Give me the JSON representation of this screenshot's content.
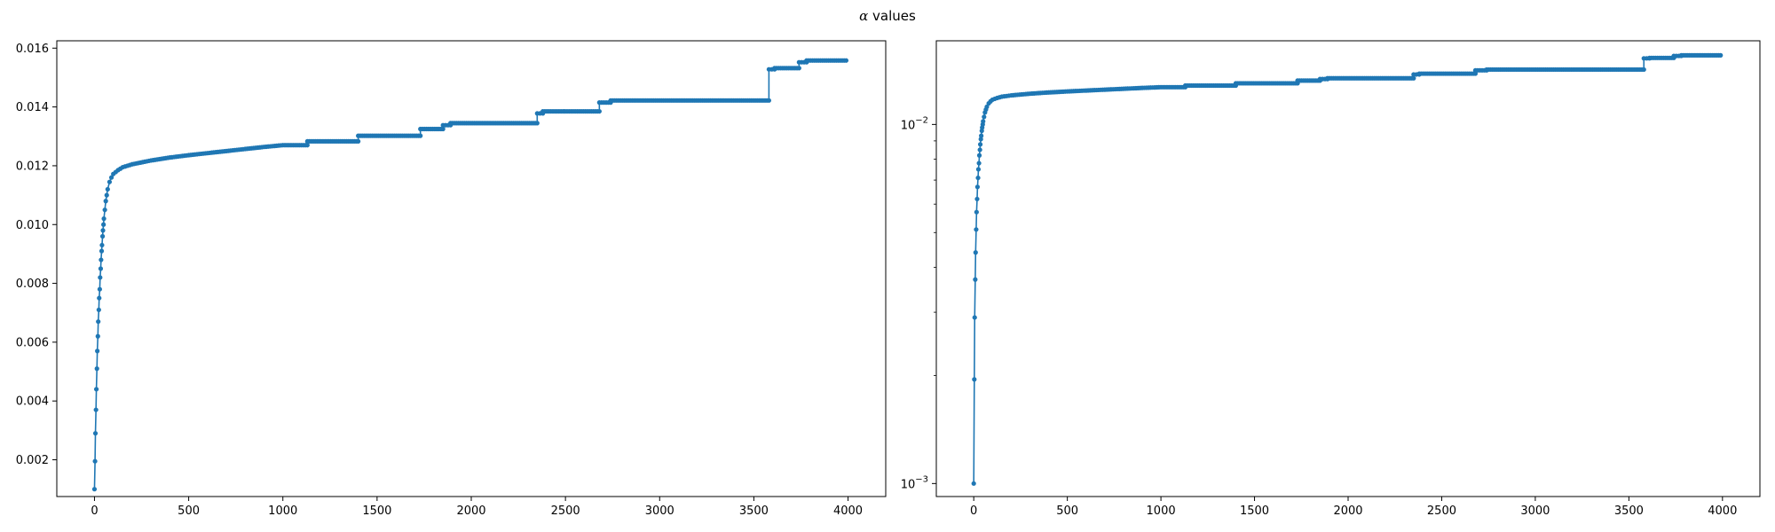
{
  "figure": {
    "title_symbol": "α",
    "title_text": " values"
  },
  "colors": {
    "series": "#1f77b4",
    "axes": "#000000"
  },
  "chart_data": [
    {
      "type": "line",
      "marker": "dot",
      "yscale": "linear",
      "xlim": [
        -200,
        4200
      ],
      "ylim": [
        0.00075,
        0.01625
      ],
      "xticks": [
        0,
        500,
        1000,
        1500,
        2000,
        2500,
        3000,
        3500,
        4000
      ],
      "xtick_labels": [
        "0",
        "500",
        "1000",
        "1500",
        "2000",
        "2500",
        "3000",
        "3500",
        "4000"
      ],
      "yticks": [
        0.002,
        0.004,
        0.006,
        0.008,
        0.01,
        0.012,
        0.014,
        0.016
      ],
      "ytick_labels": [
        "0.002",
        "0.004",
        "0.006",
        "0.008",
        "0.010",
        "0.012",
        "0.014",
        "0.016"
      ],
      "grid": false,
      "series": [
        {
          "points": [
            [
              0,
              0.001
            ],
            [
              3,
              0.00195
            ],
            [
              5,
              0.0029
            ],
            [
              8,
              0.0037
            ],
            [
              10,
              0.0044
            ],
            [
              13,
              0.0051
            ],
            [
              15,
              0.0057
            ],
            [
              18,
              0.0062
            ],
            [
              20,
              0.0067
            ],
            [
              23,
              0.0071
            ],
            [
              25,
              0.0075
            ],
            [
              28,
              0.0078
            ],
            [
              30,
              0.0082
            ],
            [
              33,
              0.0085
            ],
            [
              35,
              0.0088
            ],
            [
              38,
              0.0091
            ],
            [
              40,
              0.0093
            ],
            [
              43,
              0.0096
            ],
            [
              45,
              0.0098
            ],
            [
              48,
              0.01
            ],
            [
              50,
              0.0102
            ],
            [
              55,
              0.0105
            ],
            [
              60,
              0.0108
            ],
            [
              65,
              0.011
            ],
            [
              70,
              0.0112
            ],
            [
              80,
              0.01145
            ],
            [
              90,
              0.0116
            ],
            [
              100,
              0.01172
            ],
            [
              125,
              0.01185
            ],
            [
              150,
              0.01195
            ],
            [
              200,
              0.01205
            ],
            [
              300,
              0.01218
            ],
            [
              400,
              0.01228
            ],
            [
              500,
              0.01236
            ],
            [
              600,
              0.01243
            ],
            [
              700,
              0.0125
            ],
            [
              800,
              0.01257
            ],
            [
              900,
              0.01264
            ],
            [
              1000,
              0.0127
            ],
            [
              1130,
              0.0127
            ],
            [
              1130,
              0.01283
            ],
            [
              1400,
              0.01283
            ],
            [
              1400,
              0.01302
            ],
            [
              1730,
              0.01302
            ],
            [
              1730,
              0.01325
            ],
            [
              1850,
              0.01325
            ],
            [
              1850,
              0.01338
            ],
            [
              1890,
              0.01338
            ],
            [
              1890,
              0.01345
            ],
            [
              2350,
              0.01345
            ],
            [
              2350,
              0.01378
            ],
            [
              2380,
              0.01378
            ],
            [
              2380,
              0.01385
            ],
            [
              2680,
              0.01385
            ],
            [
              2680,
              0.01415
            ],
            [
              2740,
              0.01415
            ],
            [
              2740,
              0.01422
            ],
            [
              3580,
              0.01422
            ],
            [
              3580,
              0.01528
            ],
            [
              3610,
              0.01528
            ],
            [
              3610,
              0.01532
            ],
            [
              3740,
              0.01532
            ],
            [
              3740,
              0.01552
            ],
            [
              3780,
              0.01552
            ],
            [
              3780,
              0.01558
            ],
            [
              3990,
              0.01558
            ]
          ]
        }
      ]
    },
    {
      "type": "line",
      "marker": "dot",
      "yscale": "log",
      "xlim": [
        -200,
        4200
      ],
      "ylim": [
        0.00092,
        0.0171
      ],
      "xticks": [
        0,
        500,
        1000,
        1500,
        2000,
        2500,
        3000,
        3500,
        4000
      ],
      "xtick_labels": [
        "0",
        "500",
        "1000",
        "1500",
        "2000",
        "2500",
        "3000",
        "3500",
        "4000"
      ],
      "yticks_major": [
        0.001,
        0.01
      ],
      "ytick_labels": [
        {
          "base": "10",
          "exp": "−3"
        },
        {
          "base": "10",
          "exp": "−2"
        }
      ],
      "yticks_minor": [
        0.002,
        0.003,
        0.004,
        0.005,
        0.006,
        0.007,
        0.008,
        0.009
      ],
      "grid": false,
      "series": [
        {
          "points": [
            [
              0,
              0.001
            ],
            [
              3,
              0.00195
            ],
            [
              5,
              0.0029
            ],
            [
              8,
              0.0037
            ],
            [
              10,
              0.0044
            ],
            [
              13,
              0.0051
            ],
            [
              15,
              0.0057
            ],
            [
              18,
              0.0062
            ],
            [
              20,
              0.0067
            ],
            [
              23,
              0.0071
            ],
            [
              25,
              0.0075
            ],
            [
              28,
              0.0078
            ],
            [
              30,
              0.0082
            ],
            [
              33,
              0.0085
            ],
            [
              35,
              0.0088
            ],
            [
              38,
              0.0091
            ],
            [
              40,
              0.0093
            ],
            [
              43,
              0.0096
            ],
            [
              45,
              0.0098
            ],
            [
              48,
              0.01
            ],
            [
              50,
              0.0102
            ],
            [
              55,
              0.0105
            ],
            [
              60,
              0.0108
            ],
            [
              65,
              0.011
            ],
            [
              70,
              0.0112
            ],
            [
              80,
              0.01145
            ],
            [
              90,
              0.0116
            ],
            [
              100,
              0.01172
            ],
            [
              125,
              0.01185
            ],
            [
              150,
              0.01195
            ],
            [
              200,
              0.01205
            ],
            [
              300,
              0.01218
            ],
            [
              400,
              0.01228
            ],
            [
              500,
              0.01236
            ],
            [
              600,
              0.01243
            ],
            [
              700,
              0.0125
            ],
            [
              800,
              0.01257
            ],
            [
              900,
              0.01264
            ],
            [
              1000,
              0.0127
            ],
            [
              1130,
              0.0127
            ],
            [
              1130,
              0.01283
            ],
            [
              1400,
              0.01283
            ],
            [
              1400,
              0.01302
            ],
            [
              1730,
              0.01302
            ],
            [
              1730,
              0.01325
            ],
            [
              1850,
              0.01325
            ],
            [
              1850,
              0.01338
            ],
            [
              1890,
              0.01338
            ],
            [
              1890,
              0.01345
            ],
            [
              2350,
              0.01345
            ],
            [
              2350,
              0.01378
            ],
            [
              2380,
              0.01378
            ],
            [
              2380,
              0.01385
            ],
            [
              2680,
              0.01385
            ],
            [
              2680,
              0.01415
            ],
            [
              2740,
              0.01415
            ],
            [
              2740,
              0.01422
            ],
            [
              3580,
              0.01422
            ],
            [
              3580,
              0.01528
            ],
            [
              3610,
              0.01528
            ],
            [
              3610,
              0.01532
            ],
            [
              3740,
              0.01532
            ],
            [
              3740,
              0.01552
            ],
            [
              3780,
              0.01552
            ],
            [
              3780,
              0.01558
            ],
            [
              3990,
              0.01558
            ]
          ]
        }
      ]
    }
  ]
}
